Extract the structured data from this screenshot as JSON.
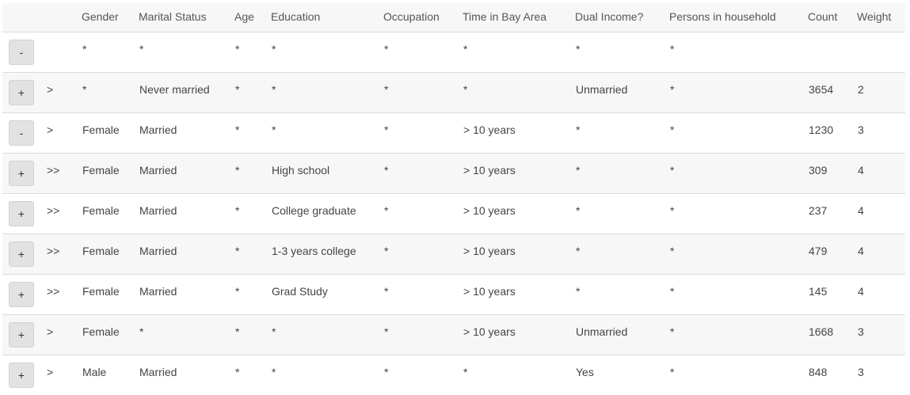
{
  "columns": [
    "",
    "",
    "Gender",
    "Marital Status",
    "Age",
    "Education",
    "Occupation",
    "Time in Bay Area",
    "Dual Income?",
    "Persons in household",
    "Count",
    "Weight"
  ],
  "rows": [
    {
      "button": "-",
      "level": "",
      "cells": [
        "*",
        "*",
        "*",
        "*",
        "*",
        "*",
        "*",
        "*",
        "",
        ""
      ]
    },
    {
      "button": "+",
      "level": ">",
      "cells": [
        "*",
        "Never married",
        "*",
        "*",
        "*",
        "*",
        "Unmarried",
        "*",
        "3654",
        "2"
      ]
    },
    {
      "button": "-",
      "level": ">",
      "cells": [
        "Female",
        "Married",
        "*",
        "*",
        "*",
        "> 10 years",
        "*",
        "*",
        "1230",
        "3"
      ]
    },
    {
      "button": "+",
      "level": ">>",
      "cells": [
        "Female",
        "Married",
        "*",
        "High school",
        "*",
        "> 10 years",
        "*",
        "*",
        "309",
        "4"
      ]
    },
    {
      "button": "+",
      "level": ">>",
      "cells": [
        "Female",
        "Married",
        "*",
        "College graduate",
        "*",
        "> 10 years",
        "*",
        "*",
        "237",
        "4"
      ]
    },
    {
      "button": "+",
      "level": ">>",
      "cells": [
        "Female",
        "Married",
        "*",
        "1-3 years college",
        "*",
        "> 10 years",
        "*",
        "*",
        "479",
        "4"
      ]
    },
    {
      "button": "+",
      "level": ">>",
      "cells": [
        "Female",
        "Married",
        "*",
        "Grad Study",
        "*",
        "> 10 years",
        "*",
        "*",
        "145",
        "4"
      ]
    },
    {
      "button": "+",
      "level": ">",
      "cells": [
        "Female",
        "*",
        "*",
        "*",
        "*",
        "> 10 years",
        "Unmarried",
        "*",
        "1668",
        "3"
      ]
    },
    {
      "button": "+",
      "level": ">",
      "cells": [
        "Male",
        "Married",
        "*",
        "*",
        "*",
        "*",
        "Yes",
        "*",
        "848",
        "3"
      ]
    }
  ]
}
